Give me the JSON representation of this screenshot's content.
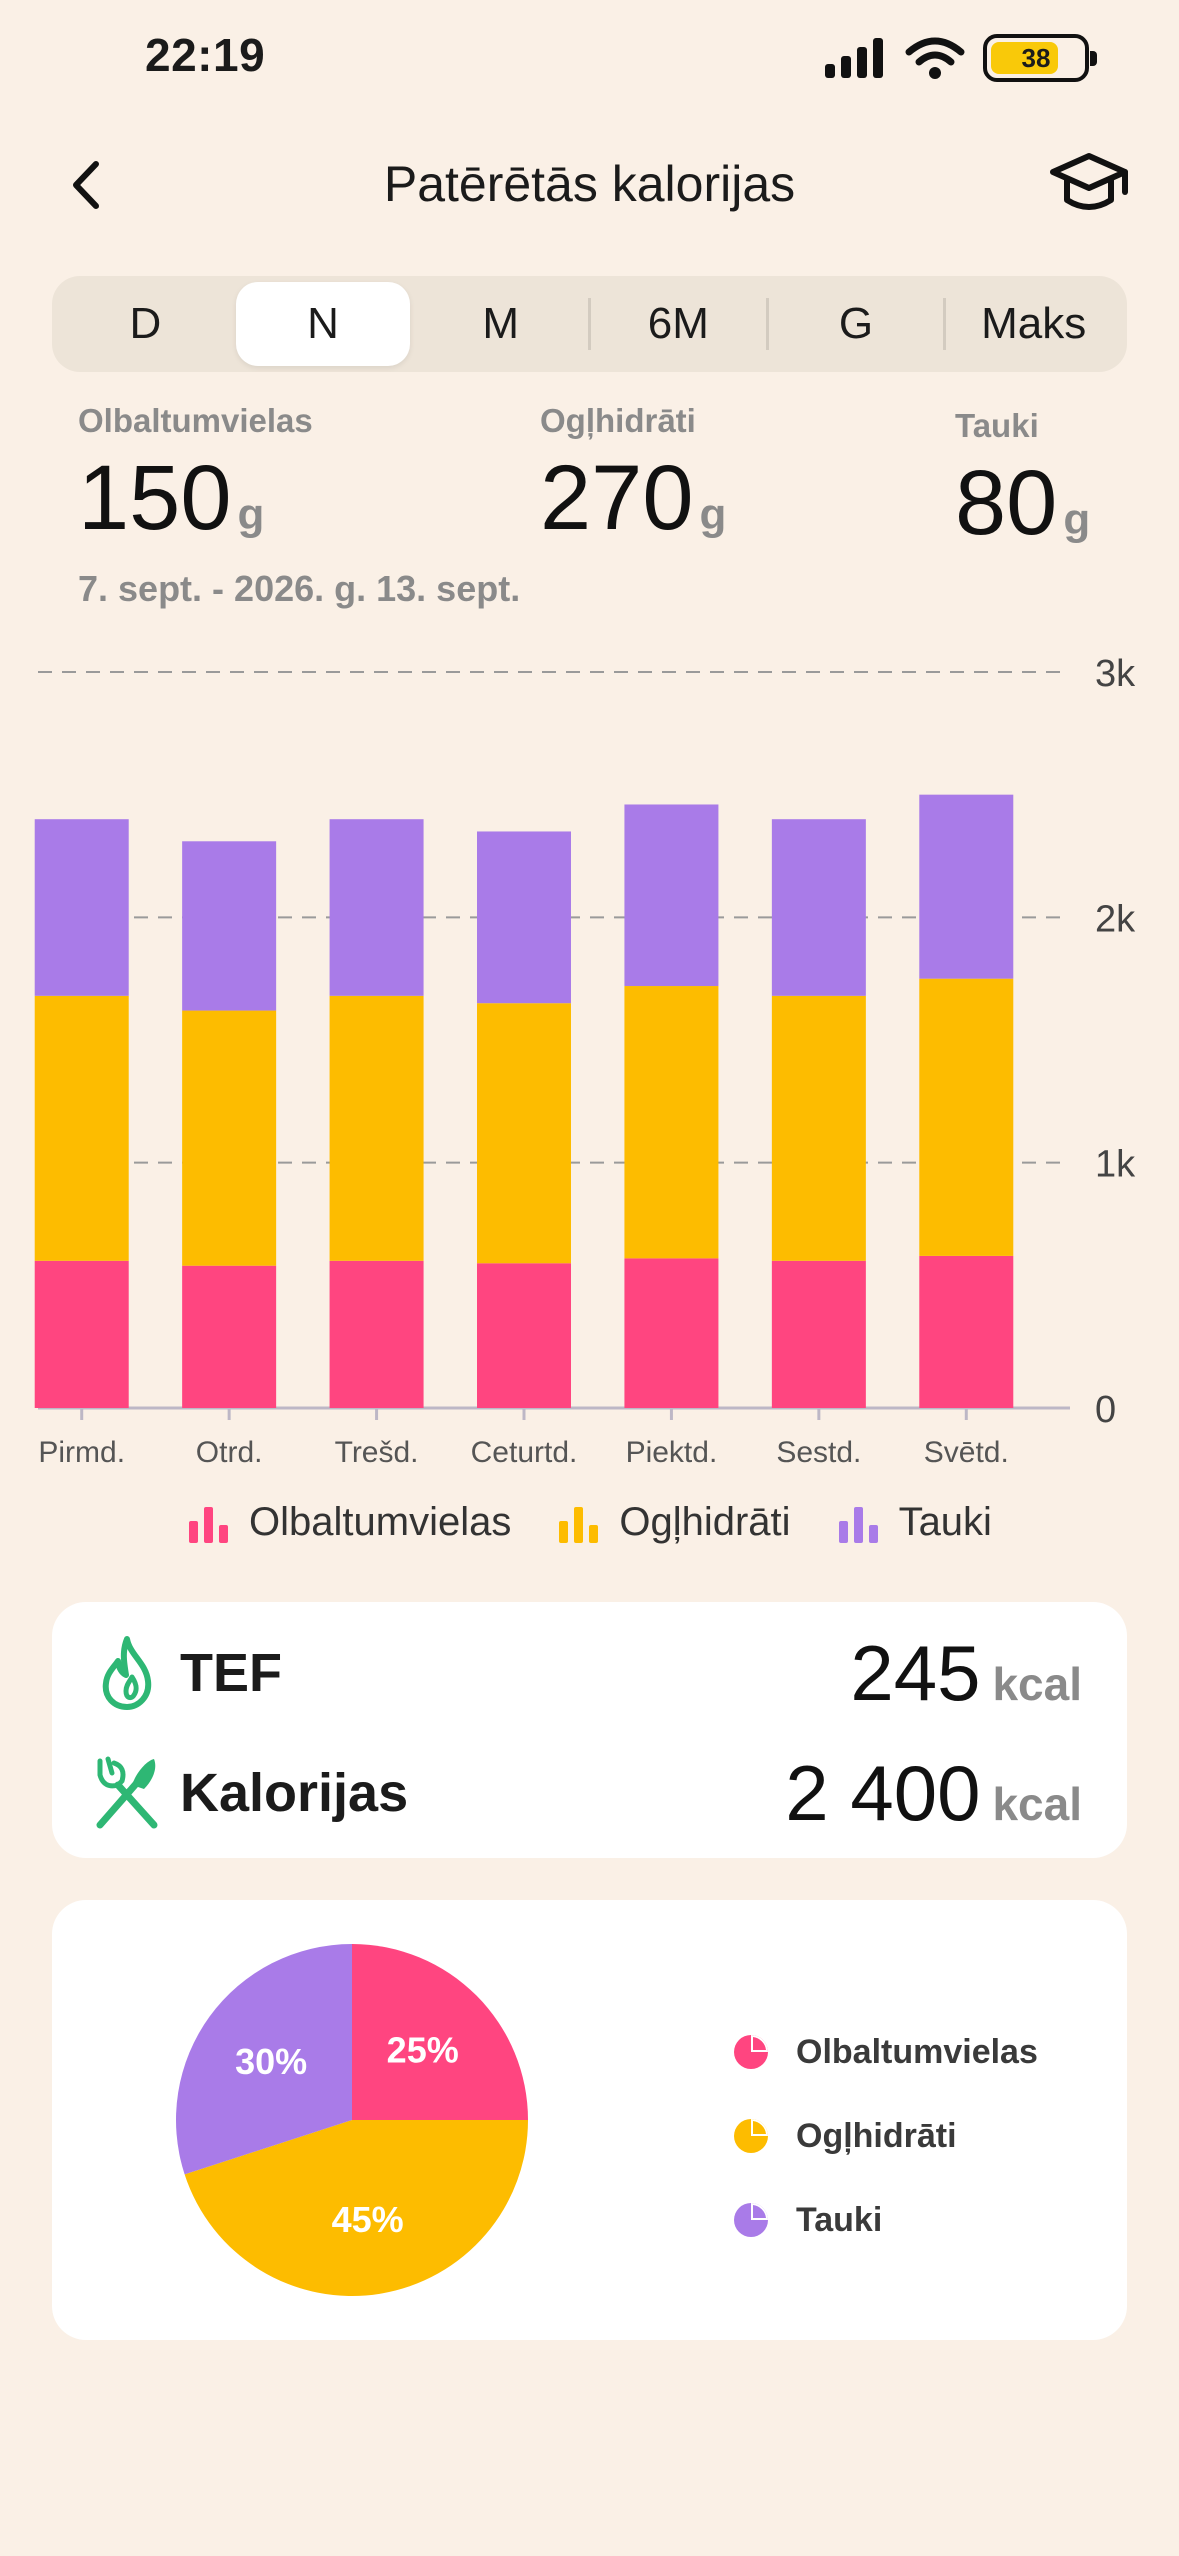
{
  "status": {
    "time": "22:19",
    "battery": "38"
  },
  "header": {
    "title": "Patērētās kalorijas"
  },
  "segments": [
    "D",
    "N",
    "M",
    "6M",
    "G",
    "Maks"
  ],
  "active_segment": "N",
  "summary": {
    "protein": {
      "label": "Olbaltumvielas",
      "value": "150",
      "unit": "g"
    },
    "carbs": {
      "label": "Ogļhidrāti",
      "value": "270",
      "unit": "g"
    },
    "fat": {
      "label": "Tauki",
      "value": "80",
      "unit": "g"
    },
    "date_range": "7. sept. - 2026. g. 13. sept."
  },
  "colors": {
    "protein": "#FF4580",
    "carbs": "#FDBC00",
    "fat": "#A97BE8"
  },
  "chart_data": {
    "type": "bar",
    "stacked": true,
    "categories": [
      "Pirmd.",
      "Otrd.",
      "Trešd.",
      "Ceturtd.",
      "Piektd.",
      "Sestd.",
      "Svētd."
    ],
    "series": [
      {
        "name": "Olbaltumvielas",
        "values": [
          600,
          580,
          600,
          590,
          610,
          600,
          620
        ]
      },
      {
        "name": "Ogļhidrāti",
        "values": [
          1080,
          1040,
          1080,
          1060,
          1110,
          1080,
          1130
        ]
      },
      {
        "name": "Tauki",
        "values": [
          720,
          690,
          720,
          700,
          740,
          720,
          750
        ]
      }
    ],
    "ylim": [
      0,
      3000
    ],
    "yticks": [
      0,
      1000,
      2000,
      3000
    ],
    "ytick_labels": [
      "0",
      "1k",
      "2k",
      "3k"
    ],
    "grid": true,
    "legend": "bottom"
  },
  "energy": {
    "tef": {
      "label": "TEF",
      "value": "245",
      "unit": "kcal"
    },
    "calories": {
      "label": "Kalorijas",
      "value": "2 400",
      "unit": "kcal"
    }
  },
  "pie": {
    "slices": [
      {
        "name": "Olbaltumvielas",
        "percent": 25,
        "label": "25%"
      },
      {
        "name": "Ogļhidrāti",
        "percent": 45,
        "label": "45%"
      },
      {
        "name": "Tauki",
        "percent": 30,
        "label": "30%"
      }
    ]
  }
}
